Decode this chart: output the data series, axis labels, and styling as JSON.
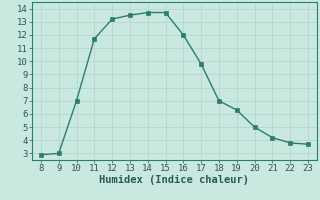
{
  "x": [
    8,
    9,
    10,
    11,
    12,
    13,
    14,
    15,
    16,
    17,
    18,
    19,
    20,
    21,
    22,
    23
  ],
  "y": [
    2.9,
    3.0,
    7.0,
    11.7,
    13.2,
    13.5,
    13.7,
    13.7,
    12.0,
    9.8,
    7.0,
    6.3,
    5.0,
    4.2,
    3.8,
    3.7
  ],
  "line_color": "#2d7d6e",
  "marker_color": "#2d7d6e",
  "bg_color": "#c8e8e0",
  "grid_color": "#b8d8d0",
  "xlabel": "Humidex (Indice chaleur)",
  "xlim": [
    7.5,
    23.5
  ],
  "ylim": [
    2.5,
    14.5
  ],
  "xticks": [
    8,
    9,
    10,
    11,
    12,
    13,
    14,
    15,
    16,
    17,
    18,
    19,
    20,
    21,
    22,
    23
  ],
  "yticks": [
    3,
    4,
    5,
    6,
    7,
    8,
    9,
    10,
    11,
    12,
    13,
    14
  ],
  "tick_fontsize": 6.5,
  "label_fontsize": 7.5
}
